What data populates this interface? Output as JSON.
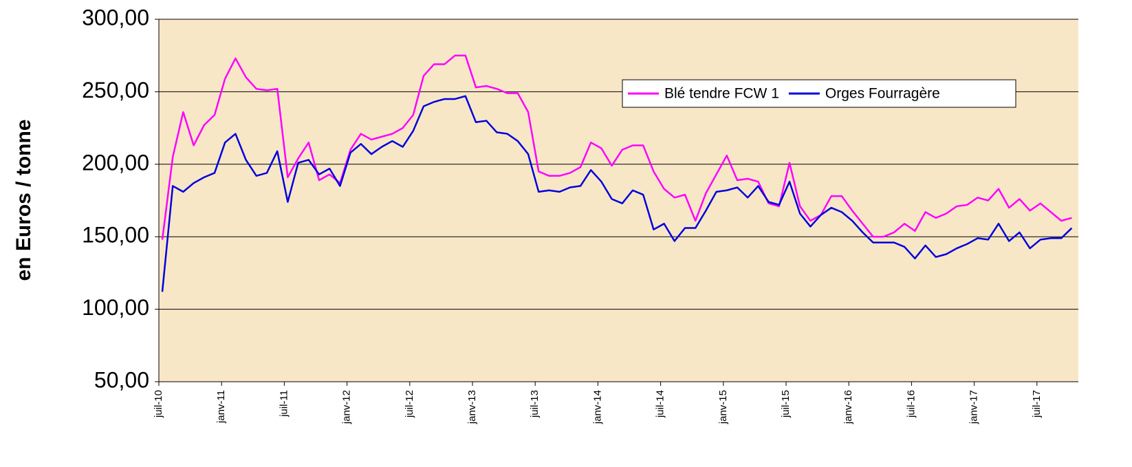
{
  "chart_data": {
    "type": "line",
    "y_label": "en Euros / tonne",
    "categories": [
      "juil-10",
      null,
      null,
      null,
      null,
      null,
      "janv-11",
      null,
      null,
      null,
      null,
      null,
      "juil-11",
      null,
      null,
      null,
      null,
      null,
      "janv-12",
      null,
      null,
      null,
      null,
      null,
      "juil-12",
      null,
      null,
      null,
      null,
      null,
      "janv-13",
      null,
      null,
      null,
      null,
      null,
      "juil-13",
      null,
      null,
      null,
      null,
      null,
      "janv-14",
      null,
      null,
      null,
      null,
      null,
      "juil-14",
      null,
      null,
      null,
      null,
      null,
      "janv-15",
      null,
      null,
      null,
      null,
      null,
      "juil-15",
      null,
      null,
      null,
      null,
      null,
      "janv-16",
      null,
      null,
      null,
      null,
      null,
      "juil-16",
      null,
      null,
      null,
      null,
      null,
      "janv-17",
      null,
      null,
      null,
      null,
      null,
      "juil-17",
      null,
      null,
      null
    ],
    "series": [
      {
        "name": "Blé tendre FCW 1",
        "color": "#ff00ff",
        "values": [
          148,
          205,
          236,
          213,
          227,
          234,
          259,
          273,
          260,
          252,
          251,
          252,
          191,
          204,
          215,
          189,
          193,
          187,
          210,
          221,
          217,
          219,
          221,
          225,
          234,
          261,
          269,
          269,
          275,
          275,
          253,
          254,
          252,
          249,
          249,
          236,
          195,
          192,
          192,
          194,
          198,
          215,
          211,
          199,
          210,
          213,
          213,
          195,
          183,
          177,
          179,
          161,
          180,
          193,
          206,
          189,
          190,
          188,
          173,
          171,
          201,
          171,
          161,
          165,
          178,
          178,
          168,
          159,
          150,
          150,
          153,
          159,
          154,
          167,
          163,
          166,
          171,
          172,
          177,
          175,
          183,
          170,
          176,
          168,
          173,
          167,
          161,
          163
        ]
      },
      {
        "name": "Orges Fourragère",
        "color": "#0000dd",
        "values": [
          112,
          185,
          181,
          187,
          191,
          194,
          215,
          221,
          203,
          192,
          194,
          209,
          174,
          201,
          203,
          193,
          197,
          185,
          208,
          214,
          207,
          212,
          216,
          212,
          223,
          240,
          243,
          245,
          245,
          247,
          229,
          230,
          222,
          221,
          216,
          207,
          181,
          182,
          181,
          184,
          185,
          196,
          188,
          176,
          173,
          182,
          179,
          155,
          159,
          147,
          156,
          156,
          168,
          181,
          182,
          184,
          177,
          185,
          174,
          172,
          188,
          166,
          157,
          165,
          170,
          167,
          161,
          153,
          146,
          146,
          146,
          143,
          135,
          144,
          136,
          138,
          142,
          145,
          149,
          148,
          159,
          147,
          153,
          142,
          148,
          149,
          149,
          156
        ]
      }
    ],
    "ylim": [
      50,
      300
    ],
    "yticks": [
      {
        "value": 50,
        "label": "50,00"
      },
      {
        "value": 100,
        "label": "100,00"
      },
      {
        "value": 150,
        "label": "150,00"
      },
      {
        "value": 200,
        "label": "200,00"
      },
      {
        "value": 250,
        "label": "250,00"
      },
      {
        "value": 300,
        "label": "300,00"
      }
    ],
    "grid": true,
    "legend": "upper right",
    "background": "#f7e7c6"
  }
}
